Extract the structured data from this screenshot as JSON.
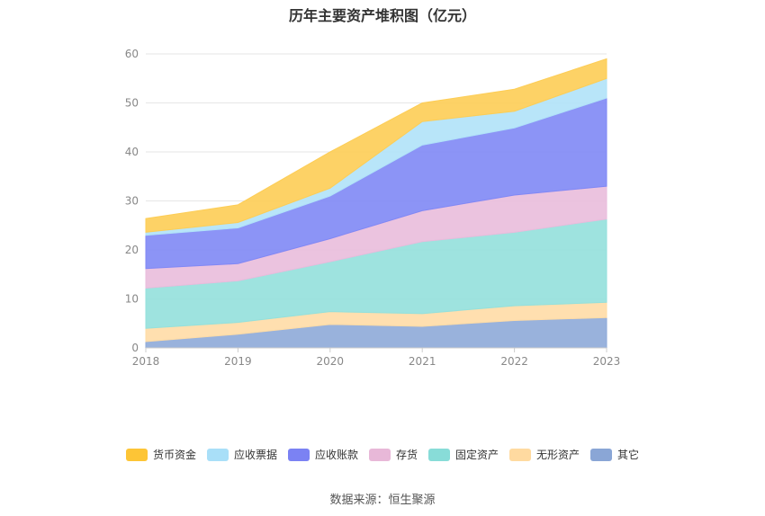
{
  "chart_data": {
    "type": "area",
    "title": "历年主要资产堆积图（亿元）",
    "stacked": true,
    "categories": [
      "2018",
      "2019",
      "2020",
      "2021",
      "2022",
      "2023"
    ],
    "ylim": [
      0,
      60
    ],
    "yticks": [
      0,
      10,
      20,
      30,
      40,
      50,
      60
    ],
    "grid": true,
    "legend_position": "bottom",
    "series": [
      {
        "name": "其它",
        "color": "#8eaad8",
        "values": [
          1.3,
          2.8,
          4.8,
          4.4,
          5.6,
          6.2
        ]
      },
      {
        "name": "无形资产",
        "color": "#ffdca6",
        "values": [
          2.7,
          2.4,
          2.6,
          2.6,
          3.0,
          3.1
        ]
      },
      {
        "name": "固定资产",
        "color": "#94e0dc",
        "values": [
          8.2,
          8.5,
          10.2,
          14.7,
          15.0,
          17.0
        ]
      },
      {
        "name": "存货",
        "color": "#e9bcdc",
        "values": [
          4.0,
          3.5,
          4.7,
          6.3,
          7.6,
          6.7
        ]
      },
      {
        "name": "应收账款",
        "color": "#8088f5",
        "values": [
          6.8,
          7.3,
          8.7,
          13.4,
          13.7,
          18.0
        ]
      },
      {
        "name": "应收票据",
        "color": "#b0e2f8",
        "values": [
          0.6,
          1.1,
          1.6,
          4.8,
          3.4,
          4.0
        ]
      },
      {
        "name": "货币资金",
        "color": "#fdcd55",
        "values": [
          2.8,
          3.6,
          7.4,
          3.8,
          4.5,
          4.0
        ]
      }
    ]
  },
  "legend": [
    {
      "label": "货币资金",
      "color": "#fdc536"
    },
    {
      "label": "应收票据",
      "color": "#a9dff8"
    },
    {
      "label": "应收账款",
      "color": "#7b82f3"
    },
    {
      "label": "存货",
      "color": "#e8b8d8"
    },
    {
      "label": "固定资产",
      "color": "#88dcd8"
    },
    {
      "label": "无形资产",
      "color": "#ffdaa0"
    },
    {
      "label": "其它",
      "color": "#8aa6d6"
    }
  ],
  "source": "数据来源：恒生聚源"
}
